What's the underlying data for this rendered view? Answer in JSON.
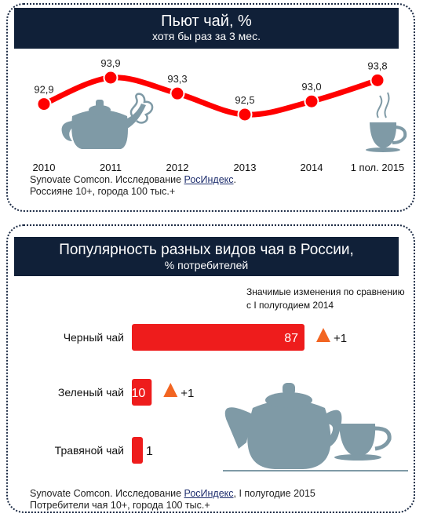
{
  "chart_data": [
    {
      "type": "line",
      "title": "Пьют чай, %",
      "subtitle": "хотя бы раз за 3 мес.",
      "categories": [
        "2010",
        "2011",
        "2012",
        "2013",
        "2014",
        "1 пол. 2015"
      ],
      "values": [
        92.9,
        93.9,
        93.3,
        92.5,
        93.0,
        93.8
      ],
      "value_labels": [
        "92,9",
        "93,9",
        "93,3",
        "92,5",
        "93,0",
        "93,8"
      ],
      "line_color": "#ff0000",
      "grid": false,
      "legend": "none"
    },
    {
      "type": "bar",
      "orientation": "horizontal",
      "title": "Популярность разных видов чая в России,",
      "subtitle": "% потребителей",
      "categories": [
        "Черный чай",
        "Зеленый чай",
        "Травяной чай"
      ],
      "values": [
        87,
        10,
        1
      ],
      "value_labels": [
        "87",
        "10",
        "1"
      ],
      "changes": [
        "+1",
        "+1",
        ""
      ],
      "change_note": "Значимые изменения по сравнению с I полугодием 2014",
      "bar_color": "#ee1c1c",
      "marker_color": "#f26522",
      "grid": false,
      "legend": "none"
    }
  ],
  "source1": {
    "prefix": "Synovate Comcon. Исследование ",
    "link": "РосИндекс",
    "suffix": ".",
    "line2": "Россияне 10+, города 100 тыс.+"
  },
  "source2": {
    "prefix": "Synovate Comcon. Исследование ",
    "link": "РосИндекс",
    "suffix": ", I полугодие 2015",
    "line2": "Потребители чая 10+, города 100 тыс.+"
  },
  "illustration_color": "#7f9aa6"
}
